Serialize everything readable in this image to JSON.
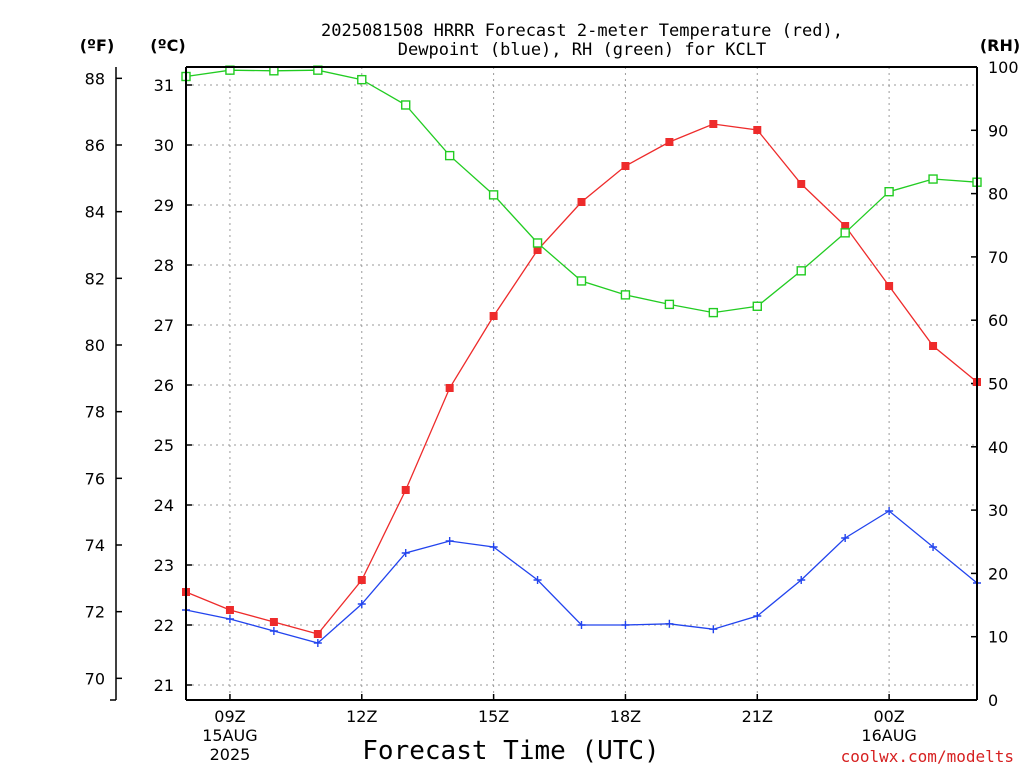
{
  "chart_data": {
    "type": "line",
    "title_line1": "2025081508 HRRR Forecast 2-meter Temperature (red),",
    "title_line2": "Dewpoint (blue), RH (green) for KCLT",
    "xlabel": "Forecast Time (UTC)",
    "credit": "coolwx.com/modelts",
    "units": {
      "fahrenheit": "(ºF)",
      "celsius": "(ºC)",
      "rh": "(RH)"
    },
    "x": [
      "08Z",
      "09Z",
      "10Z",
      "11Z",
      "12Z",
      "13Z",
      "14Z",
      "15Z",
      "16Z",
      "17Z",
      "18Z",
      "19Z",
      "20Z",
      "21Z",
      "22Z",
      "23Z",
      "00Z",
      "01Z",
      "02Z"
    ],
    "x_ticks": [
      {
        "label": "09Z",
        "sub1": "15AUG",
        "sub2": "2025",
        "index": 1
      },
      {
        "label": "12Z",
        "sub1": "",
        "sub2": "",
        "index": 4
      },
      {
        "label": "15Z",
        "sub1": "",
        "sub2": "",
        "index": 7
      },
      {
        "label": "18Z",
        "sub1": "",
        "sub2": "",
        "index": 10
      },
      {
        "label": "21Z",
        "sub1": "",
        "sub2": "",
        "index": 13
      },
      {
        "label": "00Z",
        "sub1": "16AUG",
        "sub2": "",
        "index": 16
      }
    ],
    "celsius_ticks": [
      "21",
      "22",
      "23",
      "24",
      "25",
      "26",
      "27",
      "28",
      "29",
      "30",
      "31"
    ],
    "fahrenheit_ticks": [
      "70",
      "72",
      "74",
      "76",
      "78",
      "80",
      "82",
      "84",
      "86",
      "88"
    ],
    "rh_ticks": [
      "0",
      "10",
      "20",
      "30",
      "40",
      "50",
      "60",
      "70",
      "80",
      "90",
      "100"
    ],
    "ylim_celsius": [
      20.75,
      31.3
    ],
    "ylim_rh": [
      0,
      100
    ],
    "grid": true,
    "series": [
      {
        "name": "Temperature",
        "axis": "celsius",
        "color": "#ee2b2b",
        "marker": "filled-square",
        "values": [
          22.55,
          22.25,
          22.05,
          21.85,
          22.75,
          24.25,
          25.95,
          27.15,
          28.25,
          29.05,
          29.65,
          30.05,
          30.35,
          30.25,
          29.35,
          28.65,
          27.65,
          26.65,
          26.05
        ]
      },
      {
        "name": "Dewpoint",
        "axis": "celsius",
        "color": "#2244ee",
        "marker": "plus",
        "values": [
          22.25,
          22.1,
          21.9,
          21.7,
          22.35,
          23.2,
          23.4,
          23.3,
          22.75,
          22.0,
          22.0,
          22.02,
          21.93,
          22.15,
          22.75,
          23.45,
          23.9,
          23.3,
          22.7
        ]
      },
      {
        "name": "RH",
        "axis": "rh",
        "color": "#22cc22",
        "marker": "open-square",
        "values": [
          98.5,
          99.5,
          99.4,
          99.5,
          98.0,
          94.0,
          86.0,
          79.8,
          72.2,
          66.2,
          64.0,
          62.5,
          61.2,
          62.2,
          67.8,
          73.8,
          80.3,
          82.3,
          81.8
        ]
      }
    ]
  }
}
